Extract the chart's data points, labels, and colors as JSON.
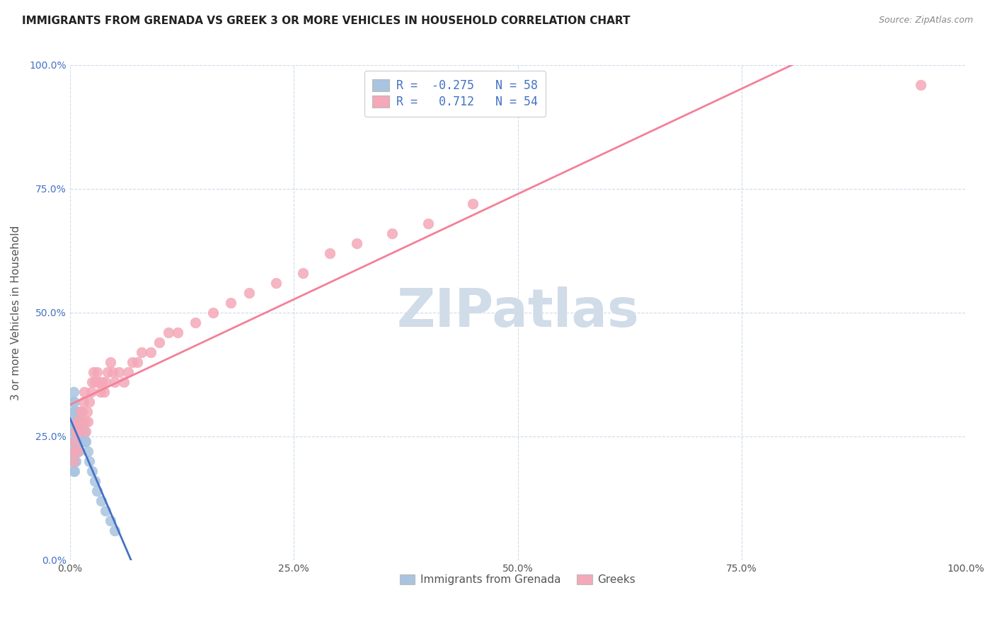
{
  "title": "IMMIGRANTS FROM GRENADA VS GREEK 3 OR MORE VEHICLES IN HOUSEHOLD CORRELATION CHART",
  "source": "Source: ZipAtlas.com",
  "ylabel": "3 or more Vehicles in Household",
  "xlabel": "",
  "xlim": [
    0.0,
    1.0
  ],
  "ylim": [
    0.0,
    1.0
  ],
  "xtick_labels": [
    "0.0%",
    "25.0%",
    "50.0%",
    "75.0%",
    "100.0%"
  ],
  "ytick_labels": [
    "0.0%",
    "25.0%",
    "50.0%",
    "75.0%",
    "100.0%"
  ],
  "legend_labels": [
    "Immigrants from Grenada",
    "Greeks"
  ],
  "blue_R": -0.275,
  "blue_N": 58,
  "pink_R": 0.712,
  "pink_N": 54,
  "blue_color": "#a8c4e0",
  "pink_color": "#f4a8b8",
  "blue_line_color": "#4472c4",
  "pink_line_color": "#f48098",
  "watermark": "ZIPatlas",
  "watermark_color": "#d0dce8",
  "background_color": "#ffffff",
  "grid_color": "#c8d8e8",
  "title_fontsize": 11,
  "blue_scatter_x": [
    0.002,
    0.002,
    0.003,
    0.003,
    0.003,
    0.004,
    0.004,
    0.004,
    0.004,
    0.004,
    0.005,
    0.005,
    0.005,
    0.005,
    0.005,
    0.005,
    0.005,
    0.005,
    0.006,
    0.006,
    0.006,
    0.006,
    0.007,
    0.007,
    0.007,
    0.007,
    0.007,
    0.008,
    0.008,
    0.008,
    0.009,
    0.009,
    0.009,
    0.009,
    0.01,
    0.01,
    0.01,
    0.01,
    0.011,
    0.011,
    0.012,
    0.012,
    0.013,
    0.013,
    0.014,
    0.015,
    0.016,
    0.017,
    0.018,
    0.02,
    0.022,
    0.025,
    0.028,
    0.03,
    0.035,
    0.04,
    0.045,
    0.05
  ],
  "blue_scatter_y": [
    0.22,
    0.28,
    0.2,
    0.26,
    0.32,
    0.18,
    0.24,
    0.28,
    0.3,
    0.34,
    0.18,
    0.2,
    0.22,
    0.24,
    0.26,
    0.28,
    0.3,
    0.32,
    0.22,
    0.24,
    0.26,
    0.3,
    0.2,
    0.22,
    0.26,
    0.28,
    0.3,
    0.24,
    0.26,
    0.3,
    0.22,
    0.24,
    0.26,
    0.3,
    0.22,
    0.24,
    0.26,
    0.3,
    0.24,
    0.28,
    0.24,
    0.28,
    0.24,
    0.28,
    0.26,
    0.26,
    0.26,
    0.24,
    0.24,
    0.22,
    0.2,
    0.18,
    0.16,
    0.14,
    0.12,
    0.1,
    0.08,
    0.06
  ],
  "pink_scatter_x": [
    0.004,
    0.005,
    0.006,
    0.007,
    0.008,
    0.009,
    0.01,
    0.011,
    0.012,
    0.013,
    0.014,
    0.015,
    0.016,
    0.017,
    0.018,
    0.019,
    0.02,
    0.022,
    0.024,
    0.025,
    0.026,
    0.028,
    0.03,
    0.032,
    0.034,
    0.036,
    0.038,
    0.04,
    0.042,
    0.045,
    0.048,
    0.05,
    0.055,
    0.06,
    0.065,
    0.07,
    0.075,
    0.08,
    0.09,
    0.1,
    0.11,
    0.12,
    0.14,
    0.16,
    0.18,
    0.2,
    0.23,
    0.26,
    0.29,
    0.32,
    0.36,
    0.4,
    0.45,
    0.95
  ],
  "pink_scatter_y": [
    0.2,
    0.22,
    0.24,
    0.26,
    0.28,
    0.22,
    0.26,
    0.28,
    0.3,
    0.28,
    0.3,
    0.32,
    0.34,
    0.28,
    0.26,
    0.3,
    0.28,
    0.32,
    0.34,
    0.36,
    0.38,
    0.36,
    0.38,
    0.36,
    0.34,
    0.36,
    0.34,
    0.36,
    0.38,
    0.4,
    0.38,
    0.36,
    0.38,
    0.36,
    0.38,
    0.4,
    0.4,
    0.42,
    0.42,
    0.44,
    0.46,
    0.46,
    0.48,
    0.5,
    0.52,
    0.54,
    0.56,
    0.58,
    0.62,
    0.64,
    0.66,
    0.68,
    0.72,
    0.96
  ]
}
